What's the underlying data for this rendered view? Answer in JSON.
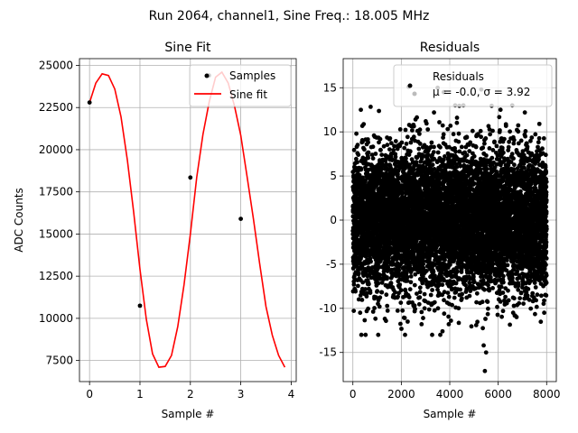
{
  "suptitle": "Run 2064, channel1, Sine Freq.: 18.005 MHz",
  "chart_data": [
    {
      "type": "line",
      "title": "Sine Fit",
      "xlabel": "Sample #",
      "ylabel": "ADC Counts",
      "xlim": [
        -0.2,
        4.1
      ],
      "ylim": [
        6250,
        25400
      ],
      "xticks": [
        0,
        1,
        2,
        3,
        4
      ],
      "yticks": [
        7500,
        10000,
        12500,
        15000,
        17500,
        20000,
        22500,
        25000
      ],
      "grid": true,
      "legend": {
        "position": "top-right",
        "entries": [
          "Samples",
          "Sine fit"
        ]
      },
      "series": [
        {
          "name": "Samples",
          "kind": "scatter",
          "color": "#000000",
          "x": [
            0,
            1,
            2,
            3
          ],
          "y": [
            22800,
            10750,
            18350,
            15900
          ]
        },
        {
          "name": "Samples",
          "kind": "scatter",
          "color": "#000000",
          "x": [
            2.37
          ],
          "y": [
            24400
          ]
        },
        {
          "name": "Sine fit",
          "kind": "line",
          "color": "#ff0000",
          "x": [
            0,
            0.125,
            0.25,
            0.375,
            0.5,
            0.625,
            0.75,
            0.875,
            1.0,
            1.125,
            1.25,
            1.375,
            1.5,
            1.625,
            1.75,
            1.875,
            2.0,
            2.125,
            2.25,
            2.375,
            2.5,
            2.625,
            2.75,
            2.875,
            3.0,
            3.125,
            3.25,
            3.375,
            3.5,
            3.625,
            3.75,
            3.875
          ],
          "y": [
            22800,
            23950,
            24500,
            24400,
            23600,
            21950,
            19400,
            16300,
            12900,
            9950,
            7900,
            7100,
            7150,
            7800,
            9500,
            12000,
            15000,
            18350,
            20900,
            22850,
            24300,
            24600,
            23950,
            22600,
            20850,
            18400,
            15900,
            13250,
            10700,
            9000,
            7800,
            7100
          ]
        }
      ]
    },
    {
      "type": "scatter",
      "title": "Residuals",
      "xlabel": "Sample #",
      "ylabel": "",
      "xlim": [
        -400,
        8400
      ],
      "ylim": [
        -18.3,
        18.3
      ],
      "xticks": [
        0,
        2000,
        4000,
        6000,
        8000
      ],
      "yticks": [
        -15,
        -10,
        -5,
        0,
        5,
        10,
        15
      ],
      "grid": true,
      "legend": {
        "position": "top-right",
        "entries": [
          "Residuals",
          "μ = -0.0, σ = 3.92"
        ]
      },
      "series": [
        {
          "name": "Residuals",
          "color": "#000000",
          "n_points": 8000,
          "mean": -0.0,
          "std": 3.92,
          "x_range": [
            0,
            8000
          ],
          "outliers": [
            [
              300,
              -10.5
            ],
            [
              330,
              12.5
            ],
            [
              2300,
              15.1
            ],
            [
              3350,
              12.2
            ],
            [
              3500,
              15.0
            ],
            [
              3750,
              14.5
            ],
            [
              5300,
              14.8
            ],
            [
              5400,
              -14.2
            ],
            [
              5450,
              -17.1
            ],
            [
              5500,
              -15.0
            ],
            [
              2500,
              10.8
            ],
            [
              4300,
              11.6
            ],
            [
              7100,
              12.2
            ],
            [
              7700,
              10.9
            ],
            [
              7900,
              -10.5
            ],
            [
              1100,
              -9.8
            ],
            [
              4050,
              -11.4
            ],
            [
              3700,
              -12.6
            ],
            [
              2900,
              -11.1
            ],
            [
              6200,
              -10.3
            ]
          ]
        }
      ]
    }
  ]
}
